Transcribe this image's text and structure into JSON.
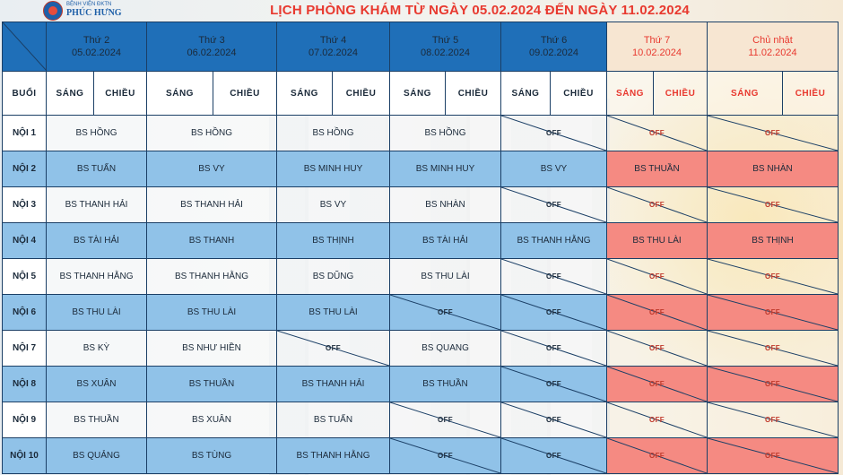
{
  "hospital": {
    "line1": "BỆNH VIỆN ĐKTN",
    "line2": "PHÚC HƯNG"
  },
  "title": "LỊCH PHÒNG KHÁM TỪ NGÀY 05.02.2024 ĐẾN NGÀY 11.02.2024",
  "labels": {
    "session": "BUỔI",
    "morning": "SÁNG",
    "afternoon": "CHIỀU",
    "off": "OFF"
  },
  "days": [
    {
      "name": "Thứ 2",
      "date": "05.02.2024"
    },
    {
      "name": "Thứ 3",
      "date": "06.02.2024"
    },
    {
      "name": "Thứ 4",
      "date": "07.02.2024"
    },
    {
      "name": "Thứ 5",
      "date": "08.02.2024"
    },
    {
      "name": "Thứ 6",
      "date": "09.02.2024"
    },
    {
      "name": "Thứ 7",
      "date": "10.02.2024"
    },
    {
      "name": "Chủ nhật",
      "date": "11.02.2024"
    }
  ],
  "colors": {
    "header_blue": "#1f6fb8",
    "weekend_red": "#e8392f",
    "row_blue": "#90c2e8",
    "weekend_cell": "#f58a82"
  },
  "rooms": [
    {
      "name": "NỘI 1",
      "days": [
        "BS HỒNG",
        "BS HỒNG",
        "BS HỒNG",
        "BS HỒNG",
        "OFF",
        "OFF",
        "OFF"
      ]
    },
    {
      "name": "NỘI 2",
      "days": [
        "BS TUẤN",
        "BS VY",
        "BS MINH HUY",
        "BS MINH HUY",
        "BS VY",
        "BS THUẦN",
        "BS NHÀN"
      ]
    },
    {
      "name": "NỘI 3",
      "days": [
        "BS THANH HẢI",
        "BS THANH HẢI",
        "BS VY",
        "BS NHÀN",
        "OFF",
        "OFF",
        "OFF"
      ]
    },
    {
      "name": "NỘI 4",
      "days": [
        "BS TÀI HẢI",
        "BS THANH",
        "BS THỊNH",
        "BS TÀI HẢI",
        "BS THANH HẰNG",
        "BS THU LÀI",
        "BS THỊNH"
      ]
    },
    {
      "name": "NỘI 5",
      "days": [
        "BS THANH HẰNG",
        "BS THANH HẰNG",
        "BS DŨNG",
        "BS THU LÀI",
        "OFF",
        "OFF",
        "OFF"
      ]
    },
    {
      "name": "NỘI 6",
      "days": [
        "BS THU LÀI",
        "BS THU LÀI",
        "BS THU LÀI",
        "OFF",
        "OFF",
        "OFF",
        "OFF"
      ]
    },
    {
      "name": "NỘI 7",
      "days": [
        "BS KỲ",
        "BS NHƯ HIỀN",
        "OFF",
        "BS QUANG",
        "OFF",
        "OFF",
        "OFF"
      ]
    },
    {
      "name": "NỘI 8",
      "days": [
        "BS XUÂN",
        "BS THUẦN",
        "BS THANH HẢI",
        "BS THUẦN",
        "OFF",
        "OFF",
        "OFF"
      ]
    },
    {
      "name": "NỘI 9",
      "days": [
        "BS THUẦN",
        "BS XUÂN",
        "BS TUẤN",
        "OFF",
        "OFF",
        "OFF",
        "OFF"
      ]
    },
    {
      "name": "NỘI 10",
      "days": [
        "BS QUẢNG",
        "BS TÙNG",
        "BS THANH HẰNG",
        "OFF",
        "OFF",
        "OFF",
        "OFF"
      ]
    }
  ]
}
